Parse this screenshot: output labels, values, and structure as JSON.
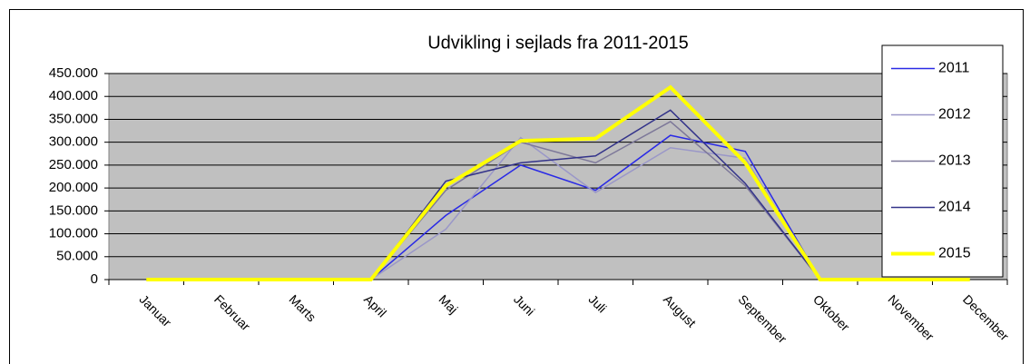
{
  "chart_data": {
    "type": "line",
    "title": "Udvikling i sejlads fra 2011-2015",
    "categories": [
      "Januar",
      "Februar",
      "Marts",
      "April",
      "Maj",
      "Juni",
      "Juli",
      "August",
      "September",
      "Oktober",
      "November",
      "December"
    ],
    "series": [
      {
        "name": "2011",
        "color": "#2a2ae6",
        "width": 1.5,
        "values": [
          0,
          0,
          0,
          0,
          140000,
          250000,
          195000,
          315000,
          280000,
          0,
          0,
          0
        ]
      },
      {
        "name": "2012",
        "color": "#9a97c8",
        "width": 1.5,
        "values": [
          0,
          0,
          0,
          0,
          110000,
          310000,
          190000,
          288000,
          265000,
          0,
          0,
          0
        ]
      },
      {
        "name": "2013",
        "color": "#7d7899",
        "width": 1.5,
        "values": [
          0,
          0,
          0,
          0,
          195000,
          300000,
          255000,
          345000,
          205000,
          0,
          0,
          0
        ]
      },
      {
        "name": "2014",
        "color": "#33338a",
        "width": 1.5,
        "values": [
          0,
          0,
          0,
          0,
          215000,
          255000,
          270000,
          370000,
          210000,
          0,
          0,
          0
        ]
      },
      {
        "name": "2015",
        "color": "#ffff00",
        "width": 4,
        "values": [
          0,
          0,
          0,
          0,
          205000,
          303000,
          308000,
          420000,
          255000,
          0,
          0,
          0
        ]
      }
    ],
    "ylim": [
      0,
      450000
    ],
    "yticks": [
      0,
      {
        "value": 50000,
        "label": "50.000"
      },
      {
        "value": 100000,
        "label": "100.000"
      },
      {
        "value": 150000,
        "label": "150.000"
      },
      {
        "value": 200000,
        "label": "200.000"
      },
      {
        "value": 250000,
        "label": "250.000"
      },
      {
        "value": 300000,
        "label": "300.000"
      },
      {
        "value": 350000,
        "label": "350.000"
      },
      {
        "value": 400000,
        "label": "400.000"
      },
      {
        "value": 450000,
        "label": "450.000"
      }
    ],
    "grid": true,
    "legend": "right",
    "plot_background": "#c0c0c0"
  }
}
